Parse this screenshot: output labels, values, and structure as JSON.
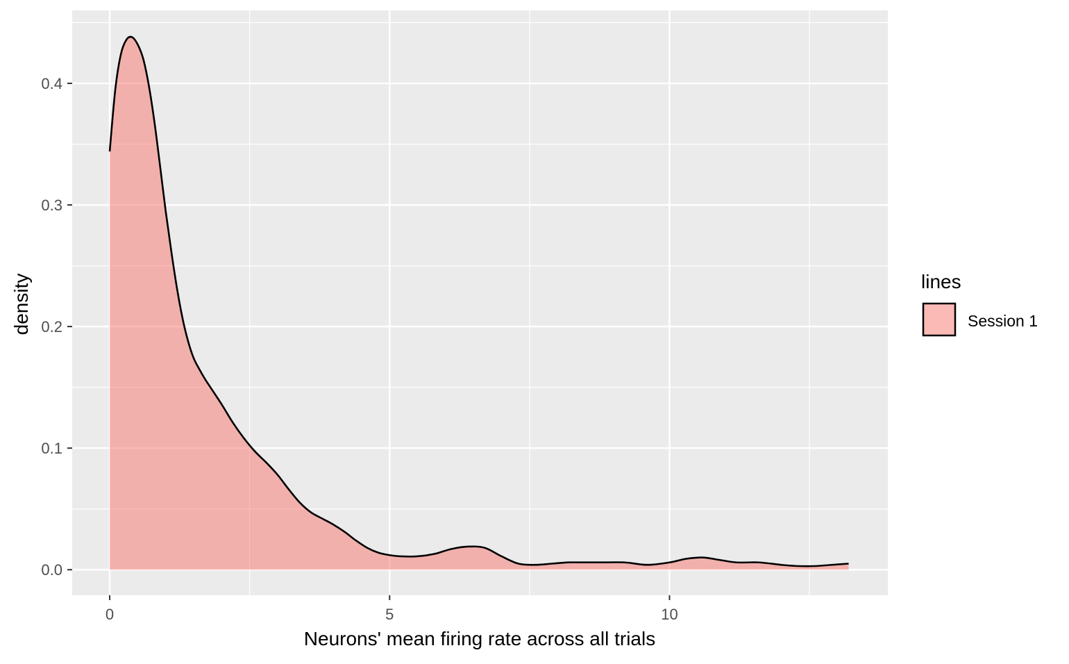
{
  "chart_data": {
    "type": "area",
    "xlabel": "Neurons' mean firing rate across all trials",
    "ylabel": "density",
    "xlim": [
      -0.67,
      13.9
    ],
    "ylim": [
      -0.021,
      0.46
    ],
    "x_ticks": [
      0,
      5,
      10
    ],
    "x_tick_labels": [
      "0",
      "5",
      "10"
    ],
    "y_ticks": [
      0.0,
      0.1,
      0.2,
      0.3,
      0.4
    ],
    "y_tick_labels": [
      "0.0",
      "0.1",
      "0.2",
      "0.3",
      "0.4"
    ],
    "grid": true,
    "legend": {
      "title": "lines",
      "position": "right",
      "entries": [
        {
          "label": "Session 1",
          "color": "#F8766D"
        }
      ]
    },
    "series": [
      {
        "name": "Session 1",
        "fill_color": "#F8766D",
        "fill_opacity": 0.5,
        "line_color": "#000000",
        "x": [
          0,
          0.1,
          0.2,
          0.3,
          0.4,
          0.5,
          0.6,
          0.7,
          0.8,
          0.9,
          1.0,
          1.1,
          1.2,
          1.3,
          1.4,
          1.5,
          1.6,
          1.7,
          1.8,
          2.0,
          2.2,
          2.4,
          2.6,
          2.8,
          3.0,
          3.2,
          3.4,
          3.6,
          3.8,
          4.0,
          4.2,
          4.4,
          4.6,
          4.8,
          5.0,
          5.2,
          5.5,
          5.8,
          6.1,
          6.4,
          6.7,
          7.0,
          7.3,
          7.6,
          7.9,
          8.2,
          8.5,
          8.8,
          9.2,
          9.6,
          10.0,
          10.3,
          10.6,
          10.9,
          11.2,
          11.6,
          12.0,
          12.3,
          12.6,
          12.9,
          13.2
        ],
        "y": [
          0.344,
          0.395,
          0.424,
          0.436,
          0.438,
          0.432,
          0.42,
          0.398,
          0.368,
          0.332,
          0.295,
          0.262,
          0.232,
          0.207,
          0.188,
          0.174,
          0.165,
          0.157,
          0.15,
          0.136,
          0.121,
          0.108,
          0.097,
          0.088,
          0.078,
          0.066,
          0.055,
          0.047,
          0.042,
          0.037,
          0.031,
          0.024,
          0.018,
          0.014,
          0.012,
          0.011,
          0.011,
          0.013,
          0.017,
          0.019,
          0.018,
          0.011,
          0.005,
          0.004,
          0.005,
          0.006,
          0.006,
          0.006,
          0.006,
          0.004,
          0.006,
          0.009,
          0.01,
          0.008,
          0.006,
          0.006,
          0.004,
          0.003,
          0.003,
          0.004,
          0.005
        ]
      }
    ]
  }
}
